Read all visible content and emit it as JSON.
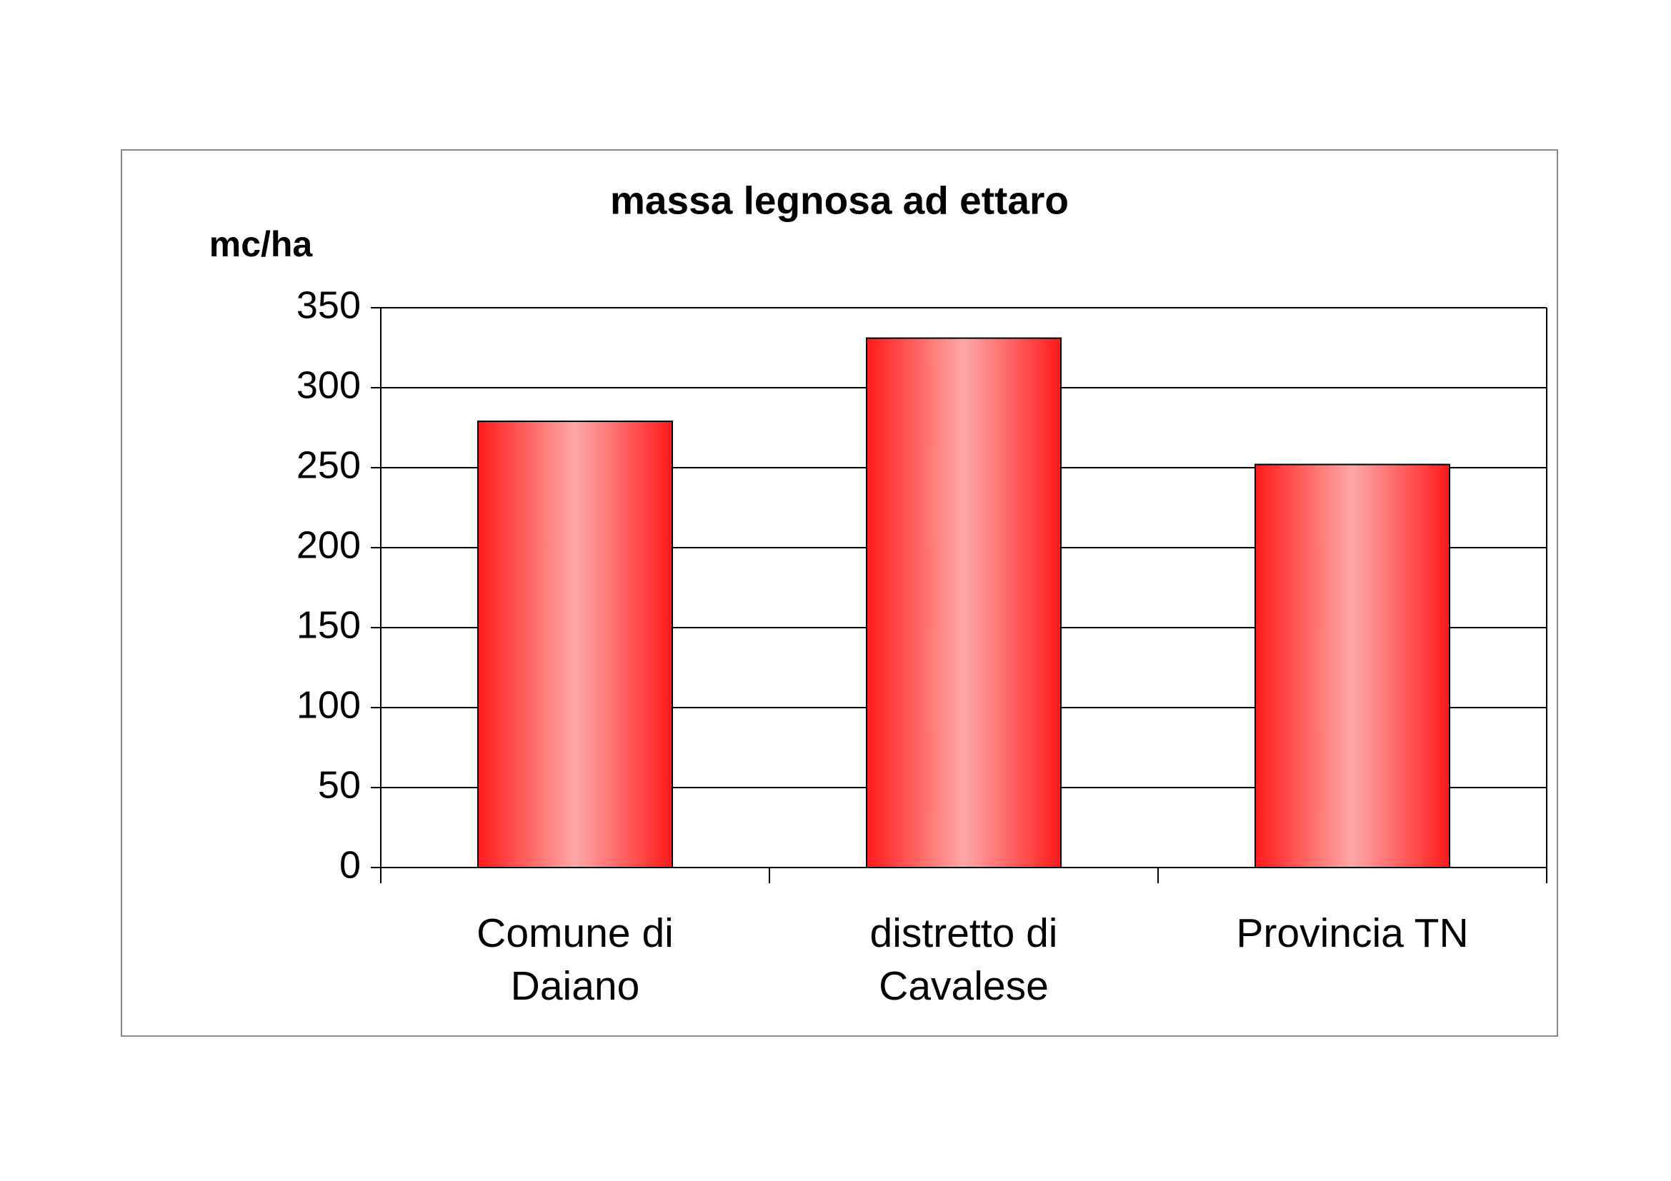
{
  "chart_data": {
    "type": "bar",
    "title": "massa legnosa ad ettaro",
    "y_label": "mc/ha",
    "categories": [
      "Comune di Daiano",
      "distretto di Cavalese",
      "Provincia TN"
    ],
    "values": [
      279,
      331,
      252
    ],
    "color": "#ff1a1a",
    "ylim": [
      0,
      350
    ],
    "yticks": [
      0,
      50,
      100,
      150,
      200,
      250,
      300,
      350
    ],
    "grid": true
  }
}
